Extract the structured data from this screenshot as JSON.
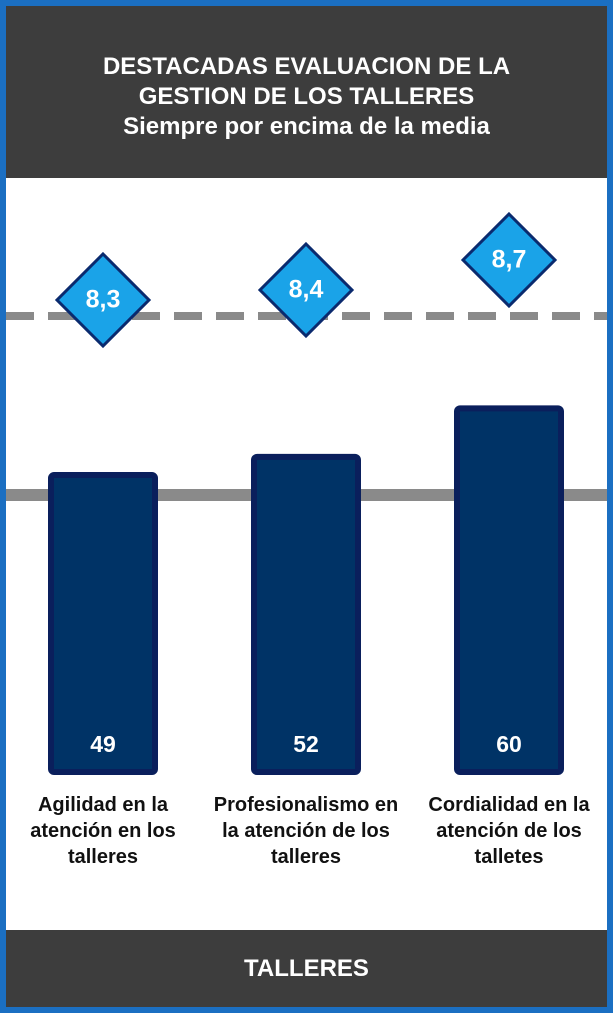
{
  "header": {
    "title": [
      "DESTACADAS EVALUACION DE LA",
      "GESTION DE LOS TALLERES"
    ],
    "subtitle": "Siempre por encima de la media"
  },
  "chart_data": {
    "type": "bar",
    "categories": [
      "Agilidad en la atención en los talleres",
      "Profesionalismo en la atención de los talleres",
      "Cordialidad en la atención de los talletes"
    ],
    "values": [
      49,
      52,
      60
    ],
    "color": "#003366",
    "ratings": {
      "values": [
        8.3,
        8.4,
        8.7
      ],
      "value_labels": [
        "8,3",
        "8,4",
        "8,7"
      ],
      "color": "#1aa3e8"
    }
  },
  "footer": "TALLERES"
}
